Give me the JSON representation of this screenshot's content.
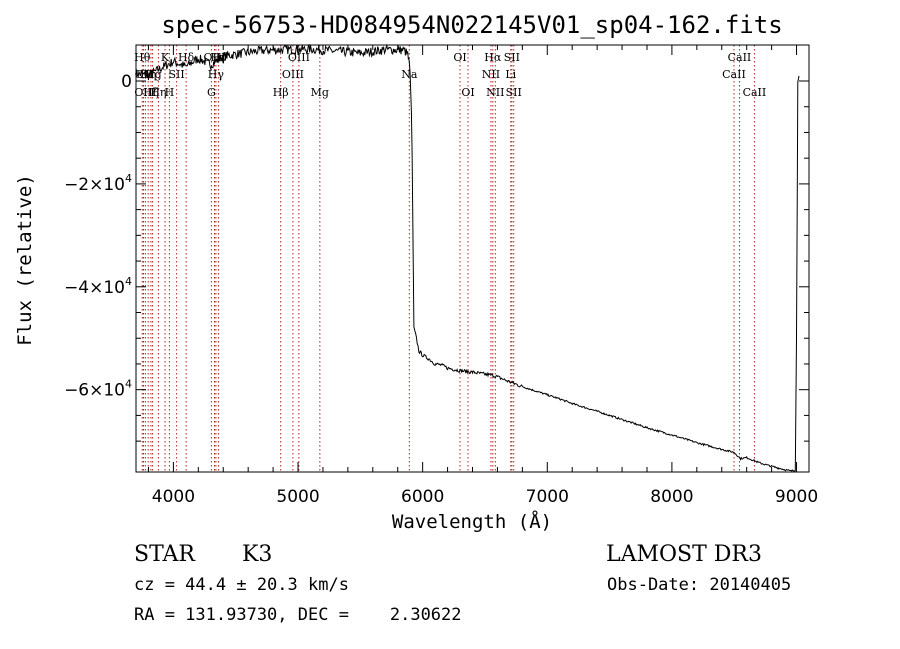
{
  "chart_data": {
    "type": "line",
    "title": "spec-56753-HD084954N022145V01_sp04-162.fits",
    "xlabel": "Wavelength (Å)",
    "ylabel": "Flux (relative)",
    "xlim": [
      3700,
      9100
    ],
    "ylim": [
      -76000,
      7000
    ],
    "x_ticks": [
      4000,
      5000,
      6000,
      7000,
      8000,
      9000
    ],
    "x_tick_labels": [
      "4000",
      "5000",
      "6000",
      "7000",
      "8000",
      "9000"
    ],
    "y_ticks": [
      0,
      -20000,
      -40000,
      -60000
    ],
    "y_tick_labels": [
      {
        "mant": "0",
        "exp": ""
      },
      {
        "mant": "−2×10",
        "exp": "4"
      },
      {
        "mant": "−4×10",
        "exp": "4"
      },
      {
        "mant": "−6×10",
        "exp": "4"
      }
    ],
    "series": [
      {
        "name": "flux",
        "x": [
          3700,
          3800,
          3900,
          4000,
          4100,
          4200,
          4300,
          4400,
          4500,
          4700,
          4900,
          5100,
          5300,
          5500,
          5700,
          5850,
          5880,
          5895,
          5900,
          5910,
          5915,
          5920,
          5930,
          5950,
          5970,
          6000,
          6050,
          6100,
          6150,
          6200,
          6300,
          6400,
          6500,
          6560,
          6600,
          6650,
          6700,
          6800,
          6900,
          7000,
          7100,
          7200,
          7400,
          7600,
          7800,
          8000,
          8200,
          8400,
          8500,
          8550,
          8600,
          8700,
          8800,
          8900,
          8950,
          8990,
          9000,
          9010,
          9020
        ],
        "y": [
          1500,
          1000,
          2500,
          3800,
          2800,
          4400,
          3200,
          4800,
          5200,
          5900,
          6100,
          6200,
          5800,
          5400,
          6100,
          6000,
          5200,
          3000,
          1000,
          -6000,
          -14000,
          -25000,
          -48000,
          -50000,
          -52500,
          -53300,
          -54000,
          -55000,
          -55200,
          -55800,
          -56300,
          -56600,
          -57000,
          -57200,
          -57500,
          -58000,
          -58500,
          -59400,
          -60200,
          -61000,
          -61800,
          -62700,
          -64200,
          -65800,
          -67400,
          -68800,
          -70300,
          -71600,
          -72200,
          -73400,
          -73200,
          -74200,
          -74900,
          -75500,
          -75800,
          -75700,
          -50000,
          0,
          1000
        ]
      }
    ],
    "lines": [
      {
        "x": 3750,
        "label": "Hθ",
        "row": 0
      },
      {
        "x": 3760,
        "label": "OII",
        "row": 1
      },
      {
        "x": 3775,
        "label": "OIII",
        "row": 2
      },
      {
        "x": 3798,
        "label": "Hη",
        "row": 1
      },
      {
        "x": 3820,
        "label": "Hζ",
        "row": 2
      },
      {
        "x": 3833,
        "label": "Mg",
        "row": 1
      },
      {
        "x": 3880,
        "label": "Hη",
        "row": 2
      },
      {
        "x": 3933,
        "label": "K",
        "row": 0
      },
      {
        "x": 3968,
        "label": "H",
        "row": 2
      },
      {
        "x": 4026,
        "label": "SII",
        "row": 1
      },
      {
        "x": 4102,
        "label": "Hδ",
        "row": 0
      },
      {
        "x": 4305,
        "label": "G",
        "row": 2
      },
      {
        "x": 4330,
        "label": "OIII",
        "row": 0
      },
      {
        "x": 4341,
        "label": "Hγ",
        "row": 1
      },
      {
        "x": 4363,
        "label": "Hγ",
        "row": 0
      },
      {
        "x": 4861,
        "label": "Hβ",
        "row": 2
      },
      {
        "x": 4959,
        "label": "OIII",
        "row": 1
      },
      {
        "x": 5007,
        "label": "OIII",
        "row": 0
      },
      {
        "x": 5175,
        "label": "Mg",
        "row": 2
      },
      {
        "x": 5893,
        "label": "Na",
        "row": 1
      },
      {
        "x": 6300,
        "label": "OI",
        "row": 0
      },
      {
        "x": 6364,
        "label": "OI",
        "row": 2
      },
      {
        "x": 6548,
        "label": "NII",
        "row": 1
      },
      {
        "x": 6563,
        "label": "Hα",
        "row": 0
      },
      {
        "x": 6583,
        "label": "NII",
        "row": 2
      },
      {
        "x": 6707,
        "label": "Li",
        "row": 1
      },
      {
        "x": 6716,
        "label": "SII",
        "row": 0
      },
      {
        "x": 6731,
        "label": "SII",
        "row": 2
      },
      {
        "x": 8498,
        "label": "CaII",
        "row": 1
      },
      {
        "x": 8542,
        "label": "CaII",
        "row": 0
      },
      {
        "x": 8662,
        "label": "CaII",
        "row": 2
      }
    ]
  },
  "info": {
    "class_label": "STAR",
    "subclass": "K3",
    "survey": "LAMOST DR3",
    "cz": "cz = 44.4 ± 20.3 km/s",
    "obs_date": "Obs-Date: 20140405",
    "coords": "RA = 131.93730, DEC =    2.30622"
  }
}
